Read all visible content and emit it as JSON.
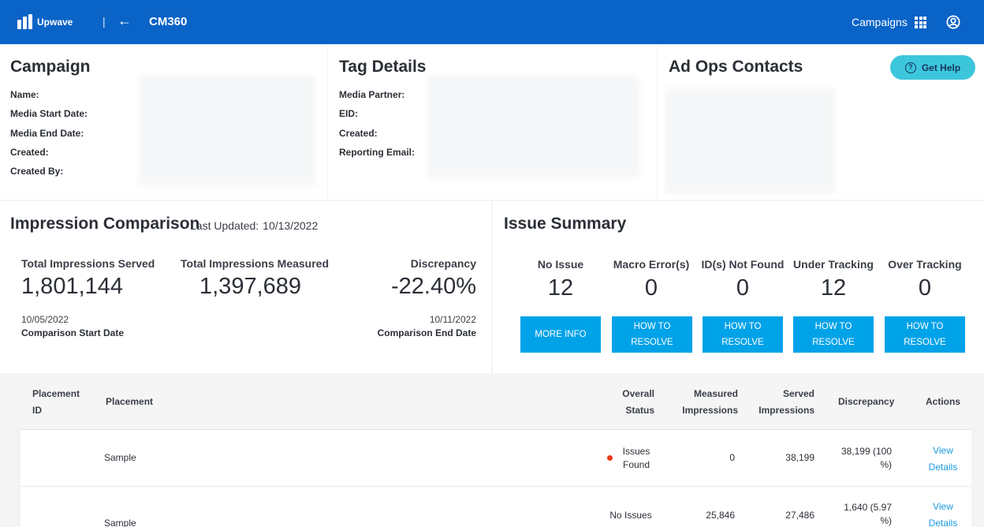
{
  "header": {
    "brand": "Upwave",
    "separator": "|",
    "back_arrow": "←",
    "title": "CM360",
    "nav_campaigns": "Campaigns",
    "bg_color": "#0a63c7"
  },
  "campaign": {
    "title": "Campaign",
    "fields": [
      "Name:",
      "Media Start Date:",
      "Media End Date:",
      "Created:",
      "Created By:"
    ]
  },
  "tag_details": {
    "title": "Tag Details",
    "fields": [
      "Media Partner:",
      "EID:",
      "Created:",
      "Reporting Email:"
    ]
  },
  "ad_ops": {
    "title": "Ad Ops Contacts",
    "help_label": "Get Help",
    "help_icon": "?"
  },
  "impression": {
    "title": "Impression Comparison",
    "last_updated_label": "Last Updated:",
    "last_updated_value": "10/13/2022",
    "served_label": "Total Impressions Served",
    "served_value": "1,801,144",
    "measured_label": "Total Impressions Measured",
    "measured_value": "1,397,689",
    "discrepancy_label": "Discrepancy",
    "discrepancy_value": "-22.40%",
    "start_date": "10/05/2022",
    "start_label": "Comparison Start Date",
    "end_date": "10/11/2022",
    "end_label": "Comparison End Date"
  },
  "issues": {
    "title": "Issue Summary",
    "items": [
      {
        "label": "No Issue",
        "value": "12",
        "button": "MORE INFO"
      },
      {
        "label": "Macro Error(s)",
        "value": "0",
        "button": "HOW TO RESOLVE"
      },
      {
        "label": "ID(s) Not Found",
        "value": "0",
        "button": "HOW TO RESOLVE"
      },
      {
        "label": "Under Tracking",
        "value": "12",
        "button": "HOW TO RESOLVE"
      },
      {
        "label": "Over Tracking",
        "value": "0",
        "button": "HOW TO RESOLVE"
      }
    ]
  },
  "table": {
    "headers": {
      "placement_id": "Placement ID",
      "placement": "Placement",
      "status": "Overall Status",
      "measured": "Measured Impressions",
      "served": "Served Impressions",
      "discrepancy": "Discrepancy",
      "actions": "Actions"
    },
    "rows": [
      {
        "placement": "Sample",
        "status": "Issues Found",
        "status_color": "#f13a1b",
        "measured": "0",
        "served": "38,199",
        "discrepancy": "38,199 (100 %)",
        "action": "View Details"
      },
      {
        "placement": "Sample",
        "status": "No Issues",
        "measured": "25,846",
        "served": "27,486",
        "discrepancy": "1,640 (5.97 %)",
        "action": "View Details"
      }
    ]
  }
}
